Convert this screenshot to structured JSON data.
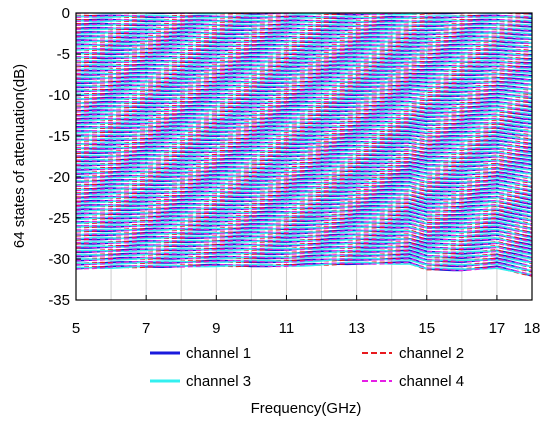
{
  "chart_data": {
    "type": "line",
    "xlabel": "Frequency(GHz)",
    "ylabel": "64 states of attenuation(dB)",
    "xlim": [
      5,
      18
    ],
    "ylim": [
      -35,
      0
    ],
    "x_ticks": [
      5,
      7,
      9,
      11,
      13,
      15,
      17,
      18
    ],
    "y_ticks": [
      0,
      -5,
      -10,
      -15,
      -20,
      -25,
      -30,
      -35
    ],
    "grid": true,
    "legend_position": "below-plot",
    "num_states": 64,
    "state_levels_db": [
      0,
      -0.5,
      -1,
      -1.5,
      -2,
      -2.5,
      -3,
      -3.5,
      -4,
      -4.5,
      -5,
      -5.5,
      -6,
      -6.5,
      -7,
      -7.5,
      -8,
      -8.5,
      -9,
      -9.5,
      -10,
      -10.5,
      -11,
      -11.5,
      -12,
      -12.5,
      -13,
      -13.5,
      -14,
      -14.5,
      -15,
      -15.5,
      -16,
      -16.5,
      -17,
      -17.5,
      -18,
      -18.5,
      -19,
      -19.5,
      -20,
      -20.5,
      -21,
      -21.5,
      -22,
      -22.5,
      -23,
      -23.5,
      -24,
      -24.5,
      -25,
      -25.5,
      -26,
      -26.5,
      -27,
      -27.5,
      -28,
      -28.5,
      -29,
      -29.5,
      -30,
      -30.5,
      -31,
      -31.5
    ],
    "response_offset_profile": {
      "x": [
        5,
        7,
        9,
        11,
        13,
        14.5,
        15,
        16,
        17,
        18
      ],
      "top_state_db": [
        0.6,
        0.6,
        0.5,
        0.5,
        0.4,
        0.4,
        0.5,
        0.6,
        0.6,
        0.5
      ],
      "bottom_state_db": [
        -31.1,
        -30.9,
        -30.8,
        -30.8,
        -30.5,
        -30.5,
        -31.2,
        -31.3,
        -31.0,
        -32.0
      ]
    },
    "series": [
      {
        "name": "channel 1",
        "color": "#1a1adc",
        "dash": "solid"
      },
      {
        "name": "channel 2",
        "color": "#e8191e",
        "dash": "dashed"
      },
      {
        "name": "channel 3",
        "color": "#33f0f0",
        "dash": "solid"
      },
      {
        "name": "channel 4",
        "color": "#e61ee6",
        "dash": "dashed"
      }
    ]
  }
}
